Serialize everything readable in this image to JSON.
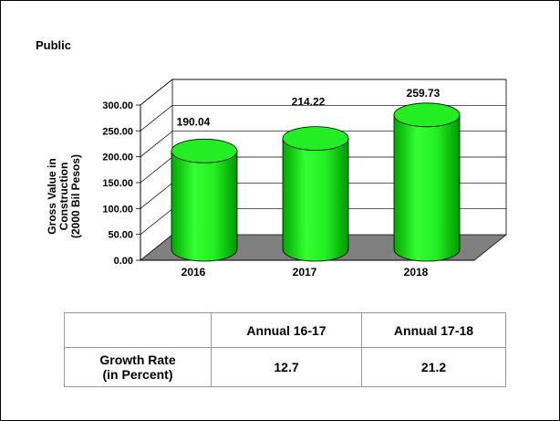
{
  "panel_title": "Public",
  "chart_data": {
    "type": "bar",
    "style": "3d-cylinder",
    "categories": [
      "2016",
      "2017",
      "2018"
    ],
    "values": [
      190.04,
      214.22,
      259.73
    ],
    "value_labels": [
      "190.04",
      "214.22",
      "259.73"
    ],
    "ylabel": "Gross Value in Construction (2000 Bil Pesos)",
    "ylabel_lines": [
      "Gross Value in",
      "Construction",
      "(2000 Bil Pesos)"
    ],
    "ylim": [
      0,
      300
    ],
    "yticks": [
      "0.00",
      "50.00",
      "100.00",
      "150.00",
      "200.00",
      "250.00",
      "300.00"
    ],
    "grid": true,
    "bar_color": "#00e600",
    "floor_color": "#808080"
  },
  "table": {
    "headers": [
      "",
      "Annual 16-17",
      "Annual 17-18"
    ],
    "row_label_lines": [
      "Growth Rate",
      "(in Percent)"
    ],
    "values": [
      "12.7",
      "21.2"
    ]
  }
}
